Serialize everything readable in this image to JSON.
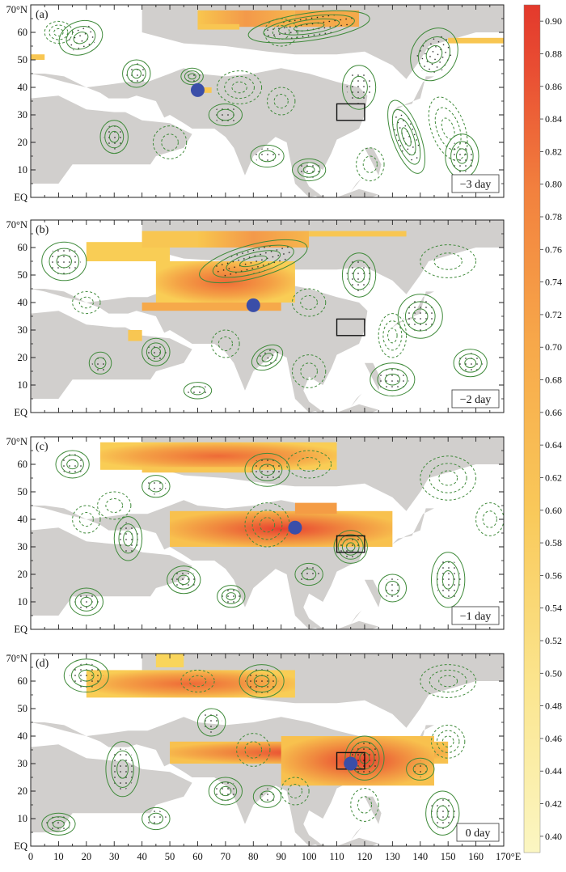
{
  "panels": [
    {
      "letter": "(a)",
      "lag_label": "−3 day",
      "blue_dot": {
        "lon": 60,
        "lat": 39
      }
    },
    {
      "letter": "(b)",
      "lag_label": "−2 day",
      "blue_dot": {
        "lon": 80,
        "lat": 39
      }
    },
    {
      "letter": "(c)",
      "lag_label": "−1 day",
      "blue_dot": {
        "lon": 95,
        "lat": 37
      }
    },
    {
      "letter": "(d)",
      "lag_label": "0 day",
      "blue_dot": {
        "lon": 115,
        "lat": 30
      }
    }
  ],
  "lat_ticks": [
    "70°N",
    "60",
    "50",
    "40",
    "30",
    "20",
    "10",
    "EQ"
  ],
  "lon_ticks": [
    "0",
    "10",
    "20",
    "30",
    "40",
    "50",
    "60",
    "70",
    "80",
    "90",
    "100",
    "110",
    "120",
    "130",
    "140",
    "150",
    "160",
    "170°E"
  ],
  "colorbar": {
    "ticks": [
      "0.40",
      "0.42",
      "0.44",
      "0.46",
      "0.48",
      "0.50",
      "0.52",
      "0.54",
      "0.56",
      "0.58",
      "0.60",
      "0.62",
      "0.64",
      "0.66",
      "0.68",
      "0.70",
      "0.72",
      "0.74",
      "0.76",
      "0.78",
      "0.80",
      "0.82",
      "0.84",
      "0.86",
      "0.88",
      "0.90"
    ],
    "colors": [
      "#fbf6c2",
      "#fbe58e",
      "#f9c95a",
      "#f7a84a",
      "#f2813e",
      "#e94f33",
      "#e3392c"
    ]
  },
  "colors": {
    "land": "#d1cfcd",
    "contour": "#3f8a3a",
    "dot": "#0b3ea8"
  },
  "box_region": {
    "lon": [
      110,
      120
    ],
    "lat": [
      28,
      32
    ]
  }
}
